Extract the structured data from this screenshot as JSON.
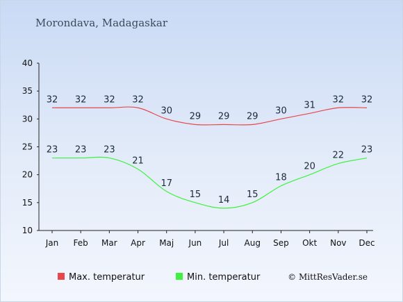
{
  "chart_data": {
    "type": "line",
    "title": "Morondava, Madagaskar",
    "categories": [
      "Jan",
      "Feb",
      "Mar",
      "Apr",
      "Maj",
      "Jun",
      "Jul",
      "Aug",
      "Sep",
      "Okt",
      "Nov",
      "Dec"
    ],
    "series": [
      {
        "name": "Max. temperatur",
        "color": "#e8474c",
        "values": [
          32,
          32,
          32,
          32,
          30,
          29,
          29,
          29,
          30,
          31,
          32,
          32
        ]
      },
      {
        "name": "Min. temperatur",
        "color": "#3cf23c",
        "values": [
          23,
          23,
          23,
          21,
          17,
          15,
          14,
          15,
          18,
          20,
          22,
          23
        ]
      }
    ],
    "yticks": [
      10,
      15,
      20,
      25,
      30,
      35,
      40
    ],
    "ylim": [
      10,
      40
    ],
    "grid": false,
    "legend_position": "bottom-left"
  },
  "copyright": "© MittResVader.se"
}
